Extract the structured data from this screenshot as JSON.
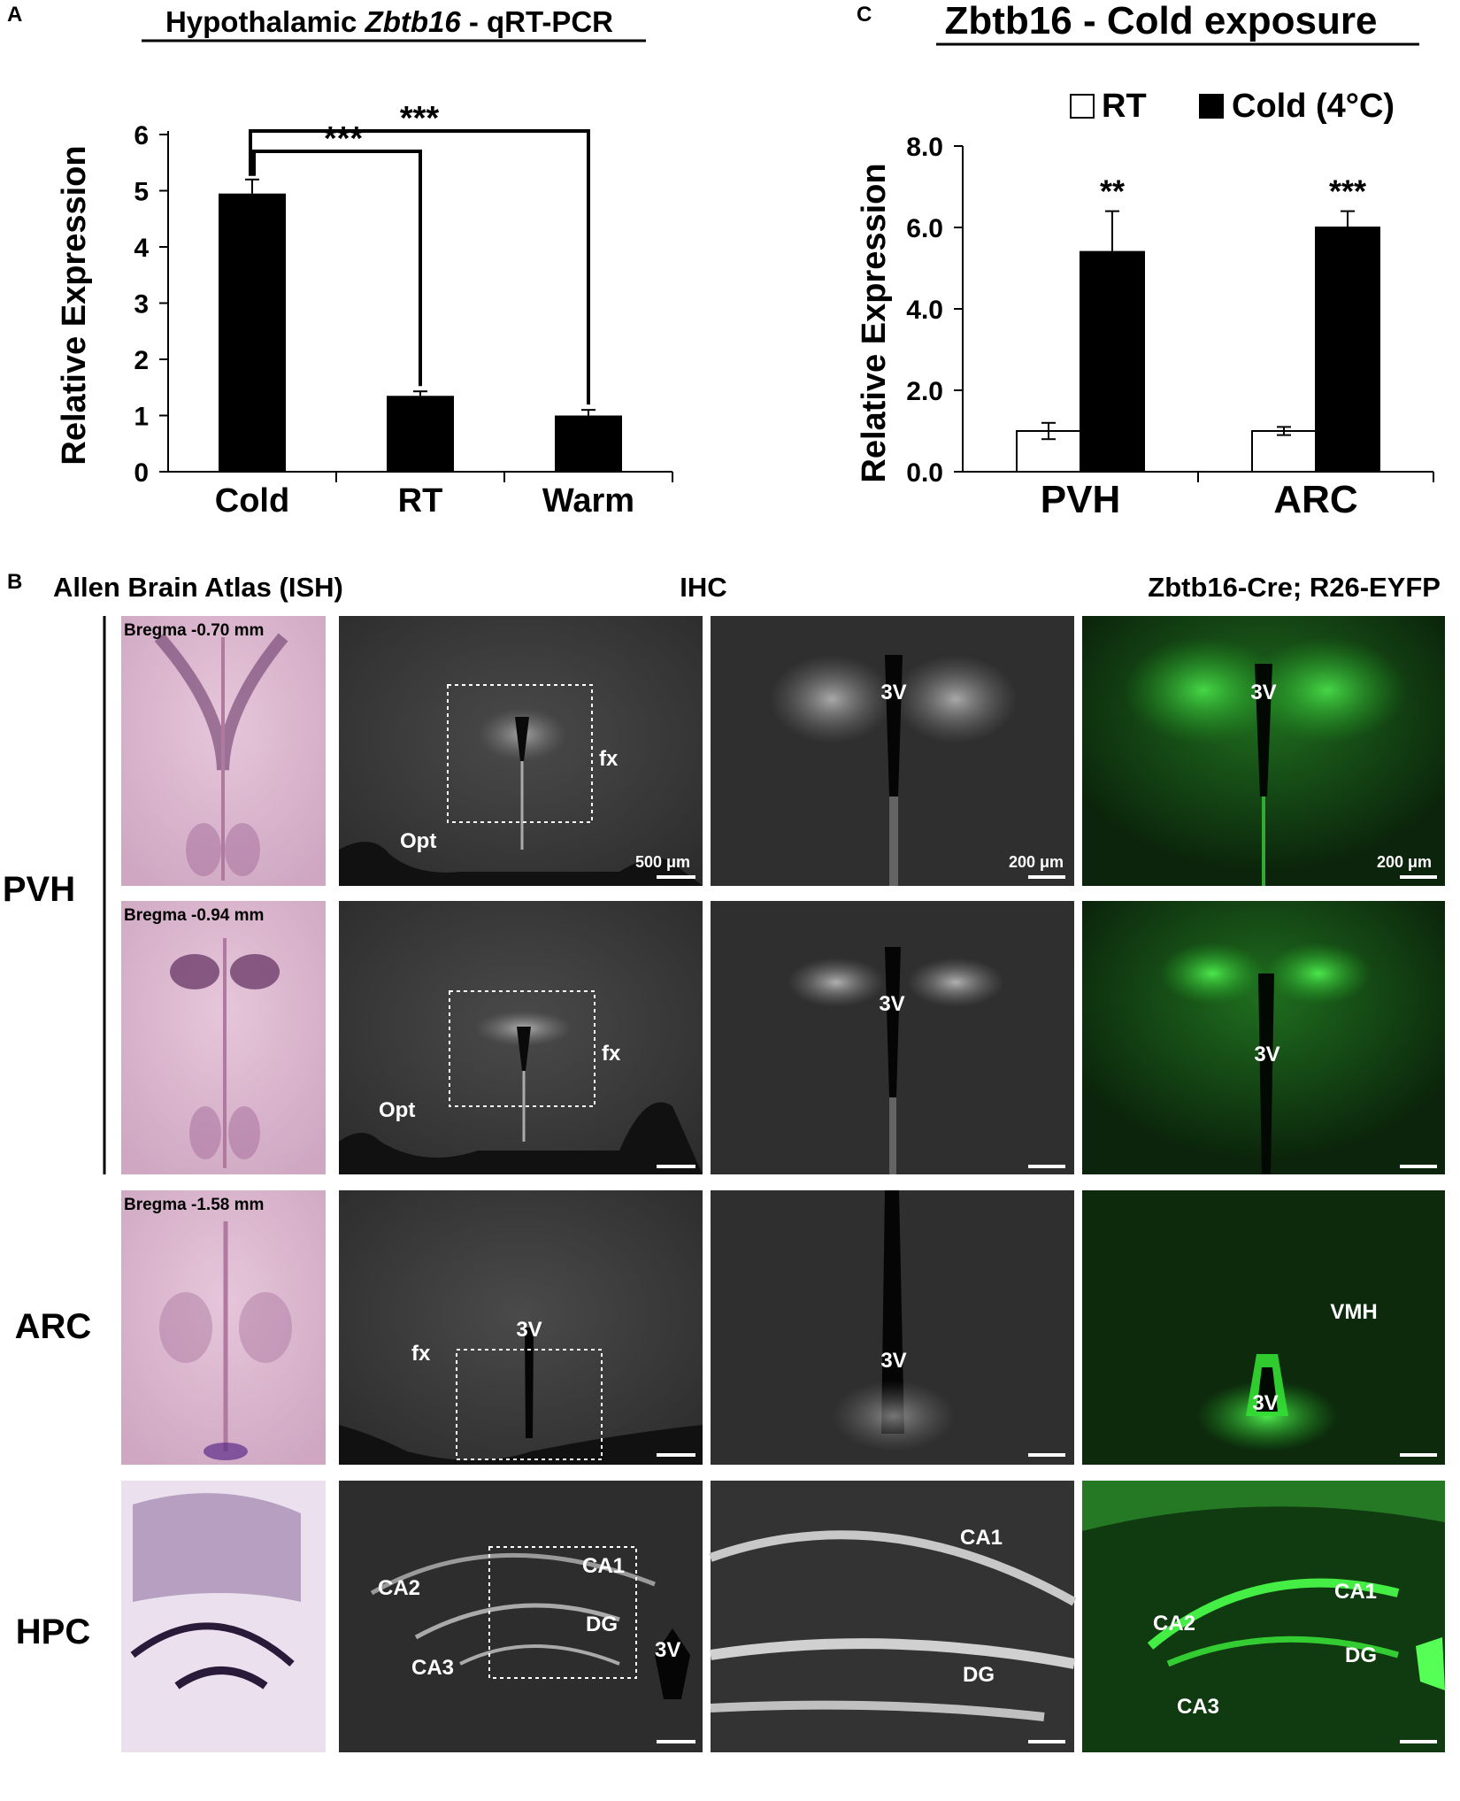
{
  "panel_letters": {
    "a": "A",
    "b": "B",
    "c": "C"
  },
  "chart_data": [
    {
      "panel": "A",
      "type": "bar",
      "title_prefix": "Hypothalamic ",
      "title_italic": "Zbtb16",
      "title_suffix": " - qRT-PCR",
      "ylabel": "Relative Expression",
      "categories": [
        "Cold",
        "RT",
        "Warm"
      ],
      "values": [
        4.95,
        1.35,
        1.0
      ],
      "errors": [
        0.25,
        0.08,
        0.1
      ],
      "ylim": [
        0,
        6
      ],
      "yticks": [
        "0",
        "1",
        "2",
        "3",
        "4",
        "5",
        "6"
      ],
      "bar_color": "#000000",
      "significance": [
        {
          "from": "Cold",
          "to": "RT",
          "label": "***"
        },
        {
          "from": "Cold",
          "to": "Warm",
          "label": "***"
        }
      ]
    },
    {
      "panel": "C",
      "type": "bar",
      "title": "Zbtb16 - Cold exposure",
      "ylabel": "Relative Expression",
      "categories": [
        "PVH",
        "ARC"
      ],
      "series": [
        {
          "name": "RT",
          "values": [
            1.0,
            1.0
          ],
          "errors": [
            0.2,
            0.1
          ],
          "color": "#ffffff"
        },
        {
          "name": "Cold (4°C)",
          "values": [
            5.4,
            6.0
          ],
          "errors": [
            1.0,
            0.4
          ],
          "color": "#000000"
        }
      ],
      "legend_position": "top-right",
      "ylim": [
        0,
        8
      ],
      "yticks": [
        "0.0",
        "2.0",
        "4.0",
        "6.0",
        "8.0"
      ],
      "significance": [
        "**",
        "***"
      ]
    }
  ],
  "panel_b": {
    "column_headers": [
      "Allen Brain Atlas (ISH)",
      "IHC",
      "Zbtb16-Cre; R26-EYFP"
    ],
    "row_labels": [
      "PVH",
      "ARC",
      "HPC"
    ],
    "bregma": [
      "Bregma -0.70 mm",
      "Bregma -0.94 mm",
      "Bregma -1.58 mm"
    ],
    "scale_bars": {
      "low_mag": "500 μm",
      "high_mag": "200 μm",
      "eyfp": "200 μm"
    },
    "annotations": {
      "fx": "fx",
      "opt": "Opt",
      "third_ventricle": "3V",
      "vmh": "VMH",
      "ca1": "CA1",
      "ca2": "CA2",
      "ca3": "CA3",
      "dg": "DG"
    },
    "colors": {
      "ish_bg": "#d8b3cc",
      "ihc_bg": "#3a3a3a",
      "eyfp_bg": "#0d260d",
      "eyfp_signal": "#33dd33"
    }
  }
}
